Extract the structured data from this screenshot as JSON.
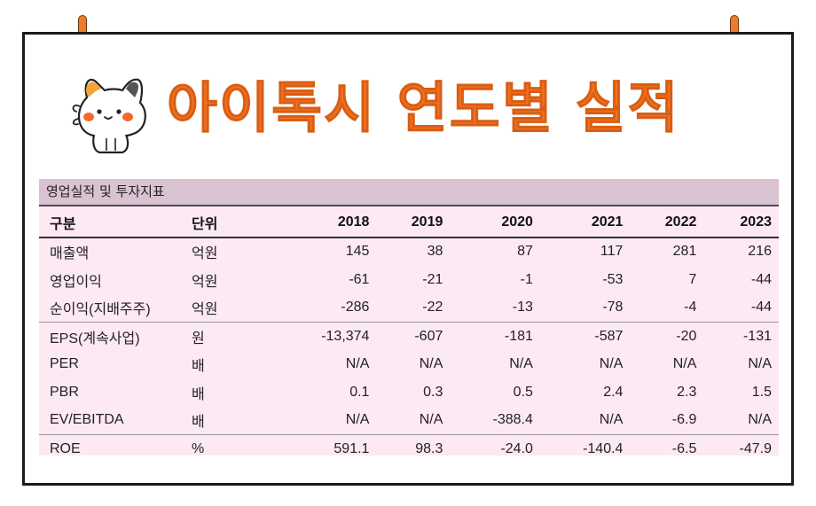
{
  "title": "아이톡시 연도별 실적",
  "caption": "영업실적 및 투자지표",
  "columns": {
    "item": "구분",
    "unit": "단위",
    "years": [
      "2018",
      "2019",
      "2020",
      "2021",
      "2022",
      "2023"
    ]
  },
  "rows": [
    {
      "name": "매출액",
      "unit": "억원",
      "values": [
        "145",
        "38",
        "87",
        "117",
        "281",
        "216"
      ]
    },
    {
      "name": "영업이익",
      "unit": "억원",
      "values": [
        "-61",
        "-21",
        "-1",
        "-53",
        "7",
        "-44"
      ]
    },
    {
      "name": "순이익(지배주주)",
      "unit": "억원",
      "values": [
        "-286",
        "-22",
        "-13",
        "-78",
        "-4",
        "-44"
      ]
    },
    {
      "name": "EPS(계속사업)",
      "unit": "원",
      "values": [
        "-13,374",
        "-607",
        "-181",
        "-587",
        "-20",
        "-131"
      ]
    },
    {
      "name": "PER",
      "unit": "배",
      "values": [
        "N/A",
        "N/A",
        "N/A",
        "N/A",
        "N/A",
        "N/A"
      ]
    },
    {
      "name": "PBR",
      "unit": "배",
      "values": [
        "0.1",
        "0.3",
        "0.5",
        "2.4",
        "2.3",
        "1.5"
      ]
    },
    {
      "name": "EV/EBITDA",
      "unit": "배",
      "values": [
        "N/A",
        "N/A",
        "-388.4",
        "N/A",
        "-6.9",
        "N/A"
      ]
    },
    {
      "name": "ROE",
      "unit": "%",
      "values": [
        "591.1",
        "98.3",
        "-24.0",
        "-140.4",
        "-6.5",
        "-47.9"
      ]
    }
  ],
  "colors": {
    "accent": "#f37021",
    "table_bg": "#fde9f3",
    "caption_bg": "#d9c3d2",
    "border": "#1a1a1a"
  },
  "icons": [
    "cat-mascot-icon",
    "pin-icon"
  ]
}
